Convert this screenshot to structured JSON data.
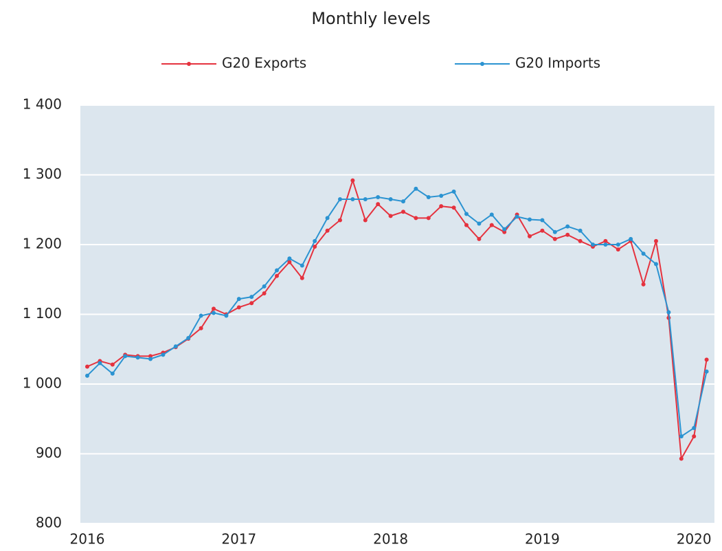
{
  "chart_data": {
    "type": "line",
    "title": "Monthly levels",
    "categories": [
      "2016",
      null,
      null,
      null,
      null,
      null,
      null,
      null,
      null,
      null,
      null,
      null,
      "2017",
      null,
      null,
      null,
      null,
      null,
      null,
      null,
      null,
      null,
      null,
      null,
      "2018",
      null,
      null,
      null,
      null,
      null,
      null,
      null,
      null,
      null,
      null,
      null,
      "2019",
      null,
      null,
      null,
      null,
      null,
      null,
      null,
      null,
      null,
      null,
      null,
      "2020",
      null
    ],
    "series": [
      {
        "name": "G20 Exports",
        "color": "#e5323e",
        "values": [
          1025,
          1033,
          1028,
          1042,
          1040,
          1040,
          1045,
          1053,
          1065,
          1080,
          1108,
          1100,
          1110,
          1116,
          1130,
          1155,
          1175,
          1152,
          1197,
          1220,
          1235,
          1292,
          1235,
          1258,
          1241,
          1247,
          1238,
          1238,
          1255,
          1253,
          1228,
          1208,
          1228,
          1218,
          1243,
          1212,
          1220,
          1208,
          1214,
          1205,
          1197,
          1205,
          1193,
          1205,
          1143,
          1205,
          1095,
          893,
          925,
          1035
        ]
      },
      {
        "name": "G20 Imports",
        "color": "#2b93d1",
        "values": [
          1012,
          1030,
          1015,
          1040,
          1038,
          1036,
          1042,
          1054,
          1066,
          1098,
          1102,
          1098,
          1122,
          1125,
          1140,
          1163,
          1180,
          1170,
          1205,
          1238,
          1265,
          1265,
          1265,
          1268,
          1265,
          1262,
          1280,
          1268,
          1270,
          1276,
          1244,
          1230,
          1243,
          1222,
          1240,
          1236,
          1235,
          1218,
          1226,
          1220,
          1200,
          1200,
          1200,
          1208,
          1187,
          1172,
          1103,
          925,
          937,
          1018
        ]
      }
    ],
    "ylim": [
      800,
      1400
    ],
    "yticks": [
      {
        "value": 800,
        "label": "800"
      },
      {
        "value": 900,
        "label": "900"
      },
      {
        "value": 1000,
        "label": "1 000"
      },
      {
        "value": 1100,
        "label": "1 100"
      },
      {
        "value": 1200,
        "label": "1 200"
      },
      {
        "value": 1300,
        "label": "1 300"
      },
      {
        "value": 1400,
        "label": "1 400"
      }
    ],
    "grid": true,
    "legend": "top"
  }
}
